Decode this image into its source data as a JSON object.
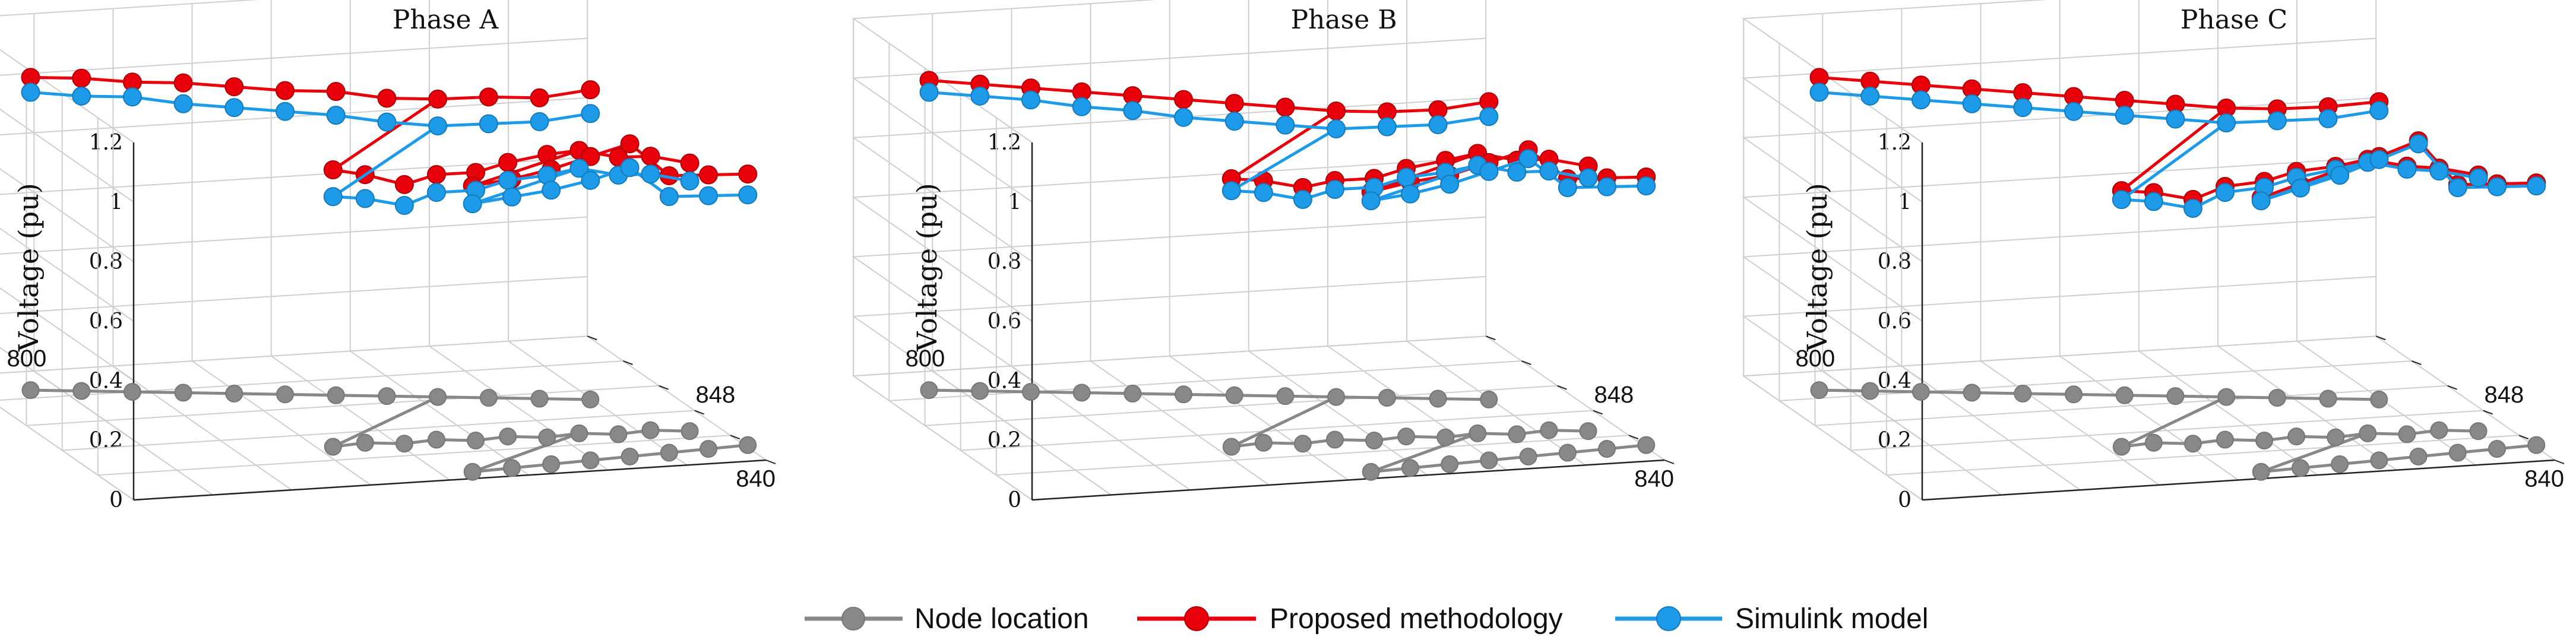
{
  "chart_data": [
    {
      "type": "line",
      "title": "Phase A",
      "zlabel": "Voltage (pu)",
      "zlim": [
        0,
        1.2
      ],
      "zticks": [
        "0",
        "0.2",
        "0.4",
        "0.6",
        "0.8",
        "1",
        "1.2"
      ],
      "node_labels": [
        "800",
        "848",
        "840"
      ],
      "series": [
        {
          "name": "Node location",
          "values": [
            0,
            0,
            0,
            0,
            0,
            0,
            0,
            0,
            0,
            0,
            0,
            0,
            0,
            0,
            0,
            0,
            0,
            0,
            0,
            0,
            0,
            0,
            0,
            0,
            0,
            0,
            0,
            0,
            0,
            0,
            0
          ]
        },
        {
          "name": "Proposed methodology",
          "values": [
            1.05,
            1.05,
            1.04,
            1.04,
            1.03,
            1.02,
            1.02,
            1.0,
            1.0,
            1.01,
            1.01,
            1.04,
            0.93,
            0.9,
            0.87,
            0.89,
            0.9,
            0.92,
            0.95,
            0.95,
            0.93,
            0.92,
            0.9,
            0.96,
            0.97,
            0.99,
            1.02,
            1.05,
            0.93,
            0.92,
            0.91
          ]
        },
        {
          "name": "Simulink model",
          "values": [
            1.0,
            0.99,
            0.99,
            0.97,
            0.96,
            0.95,
            0.94,
            0.92,
            0.91,
            0.92,
            0.93,
            0.96,
            0.84,
            0.82,
            0.8,
            0.83,
            0.84,
            0.86,
            0.88,
            0.89,
            0.87,
            0.86,
            0.84,
            0.9,
            0.91,
            0.92,
            0.94,
            0.97,
            0.86,
            0.85,
            0.84
          ]
        }
      ]
    },
    {
      "type": "line",
      "title": "Phase B",
      "zlabel": "Voltage (pu)",
      "zlim": [
        0,
        1.2
      ],
      "zticks": [
        "0",
        "0.2",
        "0.4",
        "0.6",
        "0.8",
        "1",
        "1.2"
      ],
      "node_labels": [
        "800",
        "848",
        "840"
      ],
      "series": [
        {
          "name": "Node location",
          "values": [
            0,
            0,
            0,
            0,
            0,
            0,
            0,
            0,
            0,
            0,
            0,
            0,
            0,
            0,
            0,
            0,
            0,
            0,
            0,
            0,
            0,
            0,
            0,
            0,
            0,
            0,
            0,
            0,
            0,
            0,
            0
          ]
        },
        {
          "name": "Proposed methodology",
          "values": [
            1.04,
            1.03,
            1.02,
            1.01,
            1.0,
            0.99,
            0.98,
            0.97,
            0.96,
            0.96,
            0.97,
            1.0,
            0.9,
            0.88,
            0.86,
            0.87,
            0.88,
            0.9,
            0.93,
            0.94,
            0.92,
            0.91,
            0.89,
            0.94,
            0.96,
            0.97,
            1.0,
            1.03,
            0.92,
            0.91,
            0.9
          ]
        },
        {
          "name": "Simulink model",
          "values": [
            1.0,
            0.99,
            0.98,
            0.96,
            0.95,
            0.93,
            0.92,
            0.91,
            0.9,
            0.91,
            0.92,
            0.95,
            0.86,
            0.84,
            0.82,
            0.84,
            0.85,
            0.87,
            0.89,
            0.9,
            0.88,
            0.87,
            0.85,
            0.91,
            0.92,
            0.94,
            0.97,
            1.0,
            0.89,
            0.88,
            0.87
          ]
        }
      ]
    },
    {
      "type": "line",
      "title": "Phase C",
      "zlabel": "Voltage (pu)",
      "zlim": [
        0,
        1.2
      ],
      "zticks": [
        "0",
        "0.2",
        "0.4",
        "0.6",
        "0.8",
        "1",
        "1.2"
      ],
      "node_labels": [
        "800",
        "848",
        "840"
      ],
      "series": [
        {
          "name": "Node location",
          "values": [
            0,
            0,
            0,
            0,
            0,
            0,
            0,
            0,
            0,
            0,
            0,
            0,
            0,
            0,
            0,
            0,
            0,
            0,
            0,
            0,
            0,
            0,
            0,
            0,
            0,
            0,
            0,
            0,
            0,
            0,
            0
          ]
        },
        {
          "name": "Proposed methodology",
          "values": [
            1.05,
            1.04,
            1.03,
            1.02,
            1.01,
            1.0,
            0.99,
            0.98,
            0.97,
            0.97,
            0.98,
            1.0,
            0.86,
            0.84,
            0.82,
            0.85,
            0.87,
            0.89,
            0.91,
            0.92,
            0.9,
            0.88,
            0.86,
            0.92,
            0.95,
            0.98,
            1.02,
            1.06,
            0.9,
            0.89,
            0.88
          ]
        },
        {
          "name": "Simulink model",
          "values": [
            1.0,
            0.99,
            0.98,
            0.97,
            0.96,
            0.95,
            0.94,
            0.93,
            0.92,
            0.93,
            0.94,
            0.97,
            0.83,
            0.81,
            0.79,
            0.83,
            0.85,
            0.87,
            0.9,
            0.91,
            0.89,
            0.87,
            0.85,
            0.91,
            0.94,
            0.97,
            1.01,
            1.05,
            0.89,
            0.88,
            0.87
          ]
        }
      ]
    }
  ],
  "legend": {
    "position": "bottom-center",
    "items": [
      {
        "label": "Node location",
        "color": "#888888"
      },
      {
        "label": "Proposed methodology",
        "color": "#e8000b"
      },
      {
        "label": "Simulink model",
        "color": "#1e9be8"
      }
    ]
  },
  "colors": {
    "node": "#888888",
    "proposed": "#e8000b",
    "simulink": "#1e9be8",
    "grid": "#cfcfcf"
  }
}
